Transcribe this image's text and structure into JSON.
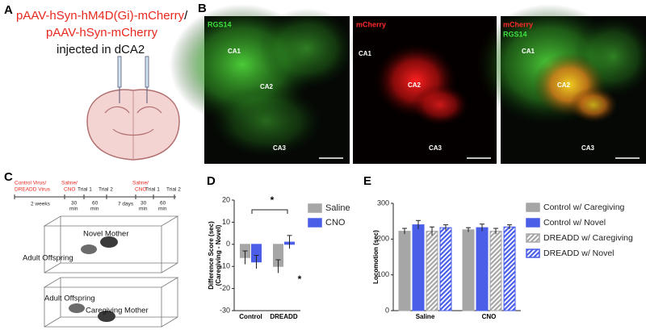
{
  "panel_labels": [
    "A",
    "B",
    "C",
    "D",
    "E"
  ],
  "panel_a": {
    "construct_1": "pAAV-hSyn-hM4D(Gi)-mCherry",
    "separator": "/",
    "construct_2": "pAAV-hSyn-mCherry",
    "caption": "injected in dCA2",
    "color": "#e8281e"
  },
  "panel_b": {
    "images": [
      {
        "channels": [
          {
            "label": "RGS14",
            "color": "#3ee03e"
          }
        ],
        "regions": [
          "CA1",
          "CA2",
          "CA3"
        ]
      },
      {
        "channels": [
          {
            "label": "mCherry",
            "color": "#ff2a2a"
          }
        ],
        "regions": [
          "CA1",
          "CA2",
          "CA3"
        ]
      },
      {
        "channels": [
          {
            "label": "mCherry",
            "color": "#ff2a2a"
          },
          {
            "label": "RGS14",
            "color": "#3ee03e"
          }
        ],
        "regions": [
          "CA1",
          "CA2",
          "CA3"
        ]
      }
    ]
  },
  "panel_c": {
    "treatments": [
      "Control Virus/",
      "DREADD Virus",
      "Saline/",
      "CNO",
      "Saline/",
      "CNO"
    ],
    "color": "#e8281e",
    "timeline_labels": [
      "Trial 1",
      "Trial 2",
      "2 weeks",
      "30",
      "min",
      "60",
      "min",
      "7 days",
      "Trial 1",
      "Trial 2",
      "30",
      "min",
      "60",
      "min"
    ],
    "arena_labels": [
      "Novel Mother",
      "Adult Offspring",
      "Adult Offspring",
      "Caregiving Mother"
    ]
  },
  "chart_data": [
    {
      "type": "bar",
      "ylabel": [
        "Difference Score (sec)",
        "(Caregiving - Novel)"
      ],
      "categories": [
        "Control",
        "DREADD"
      ],
      "series": [
        {
          "name": "Saline",
          "color": "#a6a6a6",
          "values": [
            -6,
            -10
          ],
          "errors": [
            3,
            3
          ]
        },
        {
          "name": "CNO",
          "color": "#4a5ee8",
          "values": [
            -8,
            1
          ],
          "errors": [
            3,
            3
          ]
        }
      ],
      "ylim": [
        -30,
        20
      ],
      "yticks": [
        -30,
        -20,
        -10,
        0,
        10,
        20
      ],
      "grid": false,
      "legend": "right",
      "annotations": [
        "*",
        "*"
      ]
    },
    {
      "type": "bar",
      "ylabel": [
        "Locomotion (sec)"
      ],
      "categories": [
        "Saline",
        "CNO"
      ],
      "series": [
        {
          "name": "Control w/ Caregiving",
          "color": "#a6a6a6",
          "hatch": false,
          "values": [
            222,
            226
          ],
          "errors": [
            8,
            6
          ]
        },
        {
          "name": "Control w/ Novel",
          "color": "#4a5ee8",
          "hatch": false,
          "values": [
            240,
            232
          ],
          "errors": [
            12,
            10
          ]
        },
        {
          "name": "DREADD w/ Caregiving",
          "color": "#a6a6a6",
          "hatch": true,
          "values": [
            222,
            222
          ],
          "errors": [
            12,
            8
          ]
        },
        {
          "name": "DREADD w/ Novel",
          "color": "#4a5ee8",
          "hatch": true,
          "values": [
            232,
            234
          ],
          "errors": [
            8,
            6
          ]
        }
      ],
      "ylim": [
        0,
        300
      ],
      "yticks": [
        0,
        100,
        200,
        300
      ],
      "grid": false,
      "legend": "right"
    }
  ]
}
